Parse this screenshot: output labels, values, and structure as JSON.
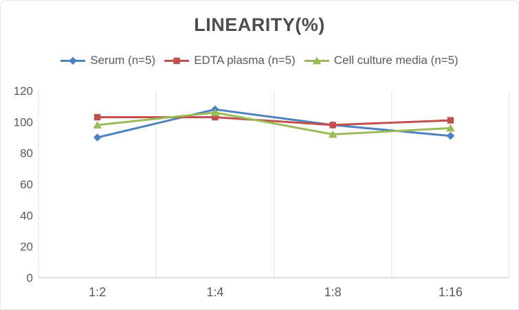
{
  "title": "LINEARITY(%)",
  "chart_data": {
    "type": "line",
    "title": "LINEARITY(%)",
    "xlabel": "",
    "ylabel": "",
    "categories": [
      "1:2",
      "1:4",
      "1:8",
      "1:16"
    ],
    "series": [
      {
        "name": "Serum (n=5)",
        "marker": "diamond-marker",
        "color": "#4F81BD",
        "values": [
          90,
          108,
          98,
          91
        ]
      },
      {
        "name": "EDTA plasma (n=5)",
        "marker": "square-marker",
        "color": "#C0504D",
        "values": [
          103,
          103,
          98,
          101
        ]
      },
      {
        "name": "Cell culture media (n=5)",
        "marker": "triangle-marker",
        "color": "#9BBB59",
        "values": [
          98,
          106,
          92,
          96
        ]
      }
    ],
    "ylim": [
      0,
      120
    ],
    "yticks": [
      0,
      20,
      40,
      60,
      80,
      100,
      120
    ],
    "grid": "vertical-only",
    "legend_position": "top"
  },
  "colors": {
    "title_text": "#4c4c4c",
    "axis_text": "#595959",
    "gridline": "#e1e1e1",
    "axis_line": "#c9c9c9",
    "background": "#ffffff"
  }
}
